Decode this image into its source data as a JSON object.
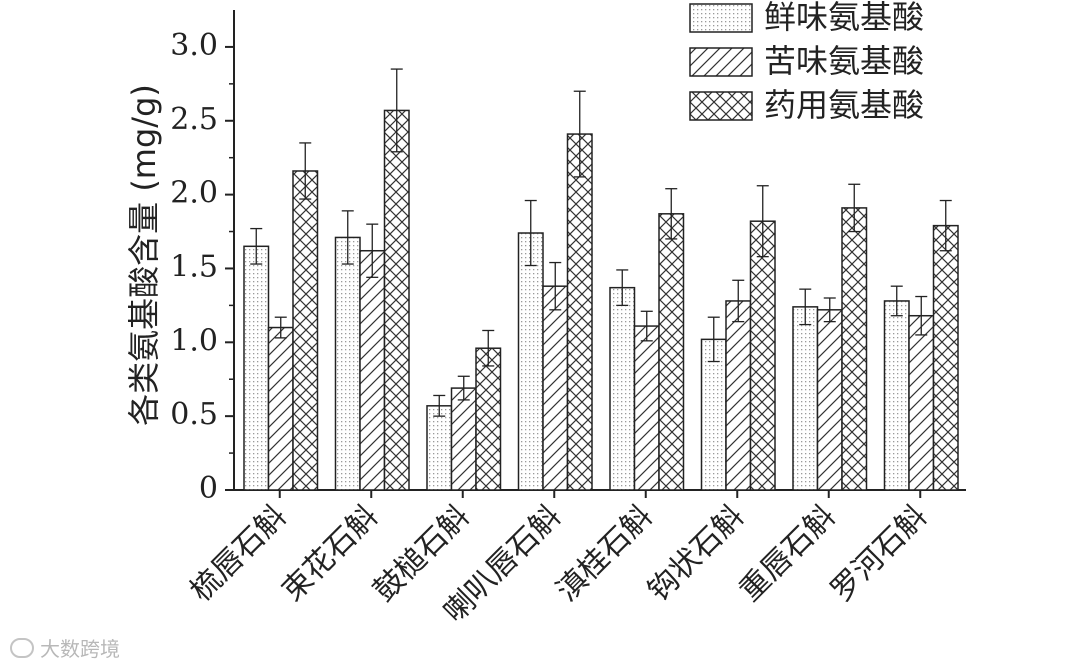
{
  "chart_data": {
    "type": "bar",
    "ylabel": "各类氨基酸含量 (mg/g)",
    "ylim": [
      0,
      3.25
    ],
    "yticks": [
      0,
      0.5,
      1.0,
      1.5,
      2.0,
      2.5,
      3.0
    ],
    "ytick_labels": [
      "0",
      "0.5",
      "1.0",
      "1.5",
      "2.0",
      "2.5",
      "3.0"
    ],
    "categories": [
      "梳唇石斛",
      "束花石斛",
      "鼓槌石斛",
      "喇叭唇石斛",
      "滇桂石斛",
      "钩状石斛",
      "重唇石斛",
      "罗河石斛"
    ],
    "series": [
      {
        "name": "鲜味氨基酸",
        "pattern": "dots",
        "values": [
          1.65,
          1.71,
          0.57,
          1.74,
          1.37,
          1.02,
          1.24,
          1.28
        ],
        "errors": [
          0.12,
          0.18,
          0.07,
          0.22,
          0.12,
          0.15,
          0.12,
          0.1
        ]
      },
      {
        "name": "苦味氨基酸",
        "pattern": "hatch",
        "values": [
          1.1,
          1.62,
          0.69,
          1.38,
          1.11,
          1.28,
          1.22,
          1.18
        ],
        "errors": [
          0.07,
          0.18,
          0.08,
          0.16,
          0.1,
          0.14,
          0.08,
          0.13
        ]
      },
      {
        "name": "药用氨基酸",
        "pattern": "crosshatch",
        "values": [
          2.16,
          2.57,
          0.96,
          2.41,
          1.87,
          1.82,
          1.91,
          1.79
        ],
        "errors": [
          0.19,
          0.28,
          0.12,
          0.29,
          0.17,
          0.24,
          0.16,
          0.17
        ]
      }
    ],
    "legend_position": "top-right",
    "grid": false
  },
  "watermark": {
    "text": "大数跨境",
    "icon": "logo-icon"
  }
}
